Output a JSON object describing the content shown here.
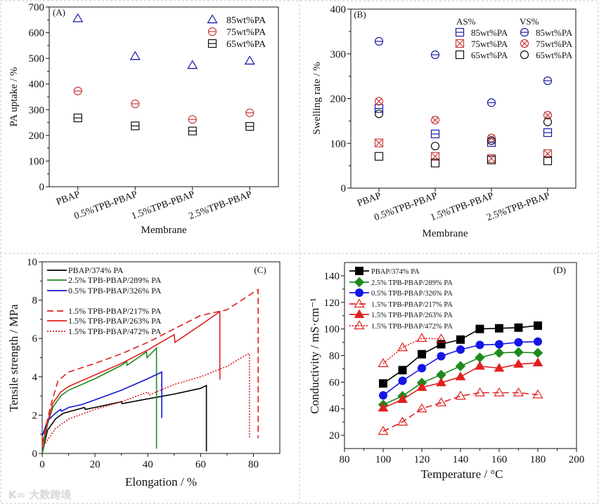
{
  "watermark": "大数跨境",
  "chart_data": [
    {
      "id": "A",
      "type": "scatter",
      "title": "(A)",
      "xlabel": "Membrane",
      "ylabel": "PA uptake / %",
      "categories": [
        "PBAP",
        "0.5%TPB-PBAP",
        "1.5%TPB-PBAP",
        "2.5%TPB-PBAP"
      ],
      "ylim": [
        0,
        700
      ],
      "ytick_step": 100,
      "series": [
        {
          "name": "85wt%PA",
          "marker": "triangle",
          "color": "#1c1ca8",
          "values": [
            655,
            508,
            473,
            490
          ]
        },
        {
          "name": "75wt%PA",
          "marker": "circle-line",
          "color": "#c83c3c",
          "values": [
            373,
            323,
            262,
            288
          ]
        },
        {
          "name": "65wt%PA",
          "marker": "square-line",
          "color": "#111111",
          "values": [
            268,
            237,
            217,
            235
          ]
        }
      ]
    },
    {
      "id": "B",
      "type": "scatter",
      "title": "(B)",
      "xlabel": "Membrane",
      "ylabel": "Swelling rate / %",
      "categories": [
        "PBAP",
        "0.5%TPB-PBAP",
        "1.5%TPB-PBAP",
        "2.5%TPB-PBAP"
      ],
      "ylim": [
        0,
        400
      ],
      "ytick_step": 100,
      "legend_groups": [
        "AS%",
        "VS%"
      ],
      "series": [
        {
          "group": "AS%",
          "name": "85wt%PA",
          "marker": "square-line",
          "color": "#1c1ca8",
          "values": [
            178,
            121,
            102,
            124
          ]
        },
        {
          "group": "AS%",
          "name": "75wt%PA",
          "marker": "square-x",
          "color": "#c83c3c",
          "values": [
            101,
            71,
            66,
            77
          ]
        },
        {
          "group": "AS%",
          "name": "65wt%PA",
          "marker": "square",
          "color": "#111111",
          "values": [
            71,
            56,
            63,
            61
          ]
        },
        {
          "group": "VS%",
          "name": "85wt%PA",
          "marker": "circle-line",
          "color": "#1c1ca8",
          "values": [
            328,
            298,
            191,
            240
          ]
        },
        {
          "group": "VS%",
          "name": "75wt%PA",
          "marker": "circle-x",
          "color": "#c83c3c",
          "values": [
            194,
            152,
            112,
            163
          ]
        },
        {
          "group": "VS%",
          "name": "65wt%PA",
          "marker": "circle",
          "color": "#111111",
          "values": [
            166,
            94,
            106,
            148
          ]
        }
      ]
    },
    {
      "id": "C",
      "type": "line",
      "title": "(C)",
      "xlabel": "Elongation  / %",
      "ylabel": "Tensile strength  / MPa",
      "xlim": [
        0,
        90
      ],
      "ylim": [
        0,
        10
      ],
      "xticks": [
        0,
        20,
        40,
        60,
        80
      ],
      "yticks": [
        0,
        2,
        4,
        6,
        8,
        10
      ],
      "series": [
        {
          "name": "PBAP/374% PA",
          "color": "#000000",
          "style": "solid",
          "x": [
            0,
            2,
            5,
            8,
            12,
            16,
            16.3,
            20,
            30,
            30.3,
            40,
            50,
            60,
            62.2,
            62.2
          ],
          "y": [
            0,
            1.2,
            1.8,
            2.1,
            2.25,
            2.4,
            2.3,
            2.4,
            2.7,
            2.6,
            2.85,
            3.1,
            3.4,
            3.55,
            0.1
          ]
        },
        {
          "name": "2.5% TPB-PBAP/289% PA",
          "color": "#1e8a1e",
          "style": "solid",
          "x": [
            0,
            2,
            4,
            7,
            10,
            20,
            30,
            32,
            32.2,
            39.5,
            39.7,
            43.3,
            43.3
          ],
          "y": [
            0,
            1.5,
            2.4,
            3.0,
            3.3,
            3.9,
            4.6,
            4.8,
            4.6,
            5.3,
            5.0,
            5.5,
            0.25
          ]
        },
        {
          "name": "0.5% TPB-PBAP/326% PA",
          "color": "#1414d2",
          "style": "solid",
          "x": [
            0,
            2,
            5,
            7,
            7.3,
            10,
            15,
            20,
            30,
            40,
            45.3,
            45.3
          ],
          "y": [
            0.9,
            1.7,
            2.1,
            2.3,
            2.2,
            2.4,
            2.55,
            2.8,
            3.3,
            3.9,
            4.25,
            1.85
          ]
        },
        {
          "name": "1.5% TPB-PBAP/217% PA",
          "color": "#e02020",
          "style": "dash",
          "x": [
            0,
            3,
            6,
            10,
            20,
            30,
            40,
            50,
            60,
            70,
            80,
            81.8,
            81.8
          ],
          "y": [
            0.5,
            2.4,
            3.8,
            4.25,
            4.7,
            5.2,
            5.8,
            6.5,
            7.2,
            7.5,
            8.4,
            8.55,
            0.8
          ]
        },
        {
          "name": "1.5% TPB-PBAP/263% PA",
          "color": "#e02020",
          "style": "solid",
          "x": [
            0,
            2,
            4,
            7,
            10,
            20,
            30,
            40,
            50,
            50.3,
            60,
            67.3,
            67.3
          ],
          "y": [
            0.4,
            1.6,
            2.6,
            3.2,
            3.5,
            4.1,
            4.7,
            5.4,
            6.2,
            5.8,
            6.7,
            7.4,
            3.85
          ]
        },
        {
          "name": "1.5% TPB-PBAP/472% PA",
          "color": "#e02020",
          "style": "dot",
          "x": [
            0,
            5,
            10,
            20,
            30,
            40,
            40.5,
            50,
            60,
            70,
            78,
            78.5,
            78.5
          ],
          "y": [
            0.3,
            1.3,
            1.8,
            2.3,
            2.7,
            3.2,
            3.05,
            3.6,
            4.0,
            4.55,
            5.2,
            5.2,
            0.8
          ]
        }
      ]
    },
    {
      "id": "D",
      "type": "line",
      "title": "(D)",
      "xlabel": "Temperature / °C",
      "ylabel": "Conductivity / mS·cm⁻¹",
      "xlim": [
        80,
        200
      ],
      "ylim": [
        10,
        150
      ],
      "xticks": [
        80,
        100,
        120,
        140,
        160,
        180,
        200
      ],
      "yticks": [
        20,
        40,
        60,
        80,
        100,
        120,
        140
      ],
      "series": [
        {
          "name": "PBAP/374% PA",
          "color": "#000000",
          "style": "solid",
          "marker": "square-filled",
          "x": [
            100,
            110,
            120,
            130,
            140,
            150,
            160,
            170,
            180
          ],
          "y": [
            59,
            69,
            81,
            88.5,
            92,
            100,
            100.5,
            101,
            102.5
          ]
        },
        {
          "name": "2.5% TPB-PBAP/289% PA",
          "color": "#1e8a1e",
          "style": "solid",
          "marker": "diamond-filled",
          "x": [
            100,
            110,
            120,
            130,
            140,
            150,
            160,
            170,
            180
          ],
          "y": [
            43,
            49.5,
            59.5,
            65.5,
            72,
            78.5,
            82,
            82.5,
            82
          ]
        },
        {
          "name": "0.5% TPB-PBAP/326% PA",
          "color": "#1414e6",
          "style": "solid",
          "marker": "circle-filled",
          "x": [
            100,
            110,
            120,
            130,
            140,
            150,
            160,
            170,
            180
          ],
          "y": [
            50,
            61,
            70.5,
            79.5,
            84.5,
            88,
            88.5,
            90,
            90.5
          ]
        },
        {
          "name": "1.5% TPB-PBAP/217% PA",
          "color": "#e02020",
          "style": "dash",
          "marker": "triangle-open",
          "x": [
            100,
            110,
            120,
            130,
            140,
            150,
            160,
            170,
            180
          ],
          "y": [
            23,
            30,
            40,
            44.5,
            49.5,
            52,
            52,
            52,
            50.5
          ]
        },
        {
          "name": "1.5% TPB-PBAP/263% PA",
          "color": "#e02020",
          "style": "solid",
          "marker": "triangle-filled",
          "x": [
            100,
            110,
            120,
            130,
            140,
            150,
            160,
            170,
            180
          ],
          "y": [
            40.5,
            47,
            56,
            59.5,
            64,
            72,
            70.5,
            73.5,
            74.5
          ]
        },
        {
          "name": "1.5% TPB-PBAP/472% PA",
          "color": "#e02020",
          "style": "dot",
          "marker": "triangle-open",
          "x": [
            100,
            110,
            120,
            130
          ],
          "y": [
            74,
            86,
            93,
            92.5
          ]
        }
      ]
    }
  ]
}
